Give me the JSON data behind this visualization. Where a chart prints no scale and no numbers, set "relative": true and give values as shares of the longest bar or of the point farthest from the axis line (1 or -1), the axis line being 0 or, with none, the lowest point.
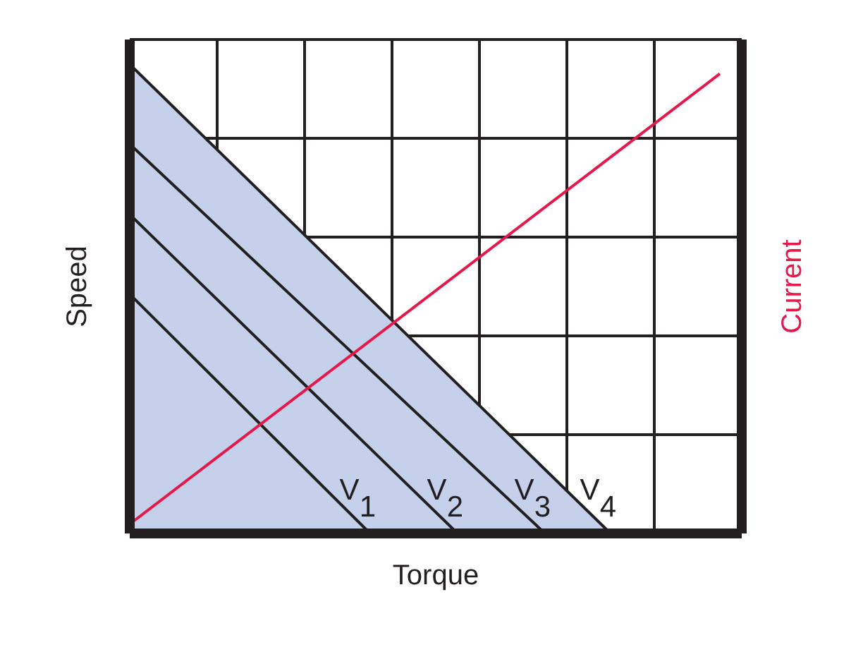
{
  "chart_data": {
    "type": "line",
    "relative": true,
    "xlabel": "Torque",
    "ylabel": "Speed",
    "y2label": "Current",
    "grid": true,
    "marker": "none",
    "categories": [
      null,
      null,
      null,
      null,
      null,
      null,
      null,
      null,
      null,
      null,
      null,
      null,
      null,
      null,
      null,
      null,
      null,
      null,
      null,
      null,
      null,
      null,
      null,
      null,
      null,
      null,
      null,
      null,
      null
    ],
    "series": [
      {
        "name": "V$_{4}$",
        "type": "area",
        "color": "#c5d0ea",
        "values": [
          1,
          null,
          null,
          null,
          null,
          null,
          null,
          null,
          null,
          null,
          null,
          null,
          null,
          null,
          null,
          null,
          null,
          null,
          null,
          null,
          null,
          null,
          0,
          null,
          null,
          null,
          null,
          null,
          null
        ]
      },
      {
        "name": "V$_{3}$",
        "color": "#231f20",
        "values": [
          0.83,
          null,
          null,
          null,
          null,
          null,
          null,
          null,
          null,
          null,
          null,
          null,
          null,
          null,
          null,
          null,
          null,
          null,
          null,
          0,
          null,
          null,
          null,
          null,
          null,
          null,
          null,
          null,
          null
        ]
      },
      {
        "name": "V$_{2}$",
        "color": "#231f20",
        "values": [
          0.68,
          null,
          null,
          null,
          null,
          null,
          null,
          null,
          null,
          null,
          null,
          null,
          null,
          null,
          null,
          0,
          null,
          null,
          null,
          null,
          null,
          null,
          null,
          null,
          null,
          null,
          null,
          null,
          null
        ]
      },
      {
        "name": "V$_{1}$",
        "color": "#231f20",
        "values": [
          0.51,
          null,
          null,
          null,
          null,
          null,
          null,
          null,
          null,
          null,
          null,
          0,
          null,
          null,
          null,
          null,
          null,
          null,
          null,
          null,
          null,
          null,
          null,
          null,
          null,
          null,
          null,
          null,
          null
        ]
      },
      {
        "type": "line",
        "color": "#e8174a",
        "values": [
          0.02,
          null,
          null,
          null,
          null,
          null,
          null,
          null,
          null,
          null,
          null,
          null,
          null,
          null,
          null,
          null,
          null,
          null,
          null,
          null,
          null,
          null,
          null,
          null,
          null,
          null,
          null,
          0.98,
          null
        ]
      }
    ]
  }
}
